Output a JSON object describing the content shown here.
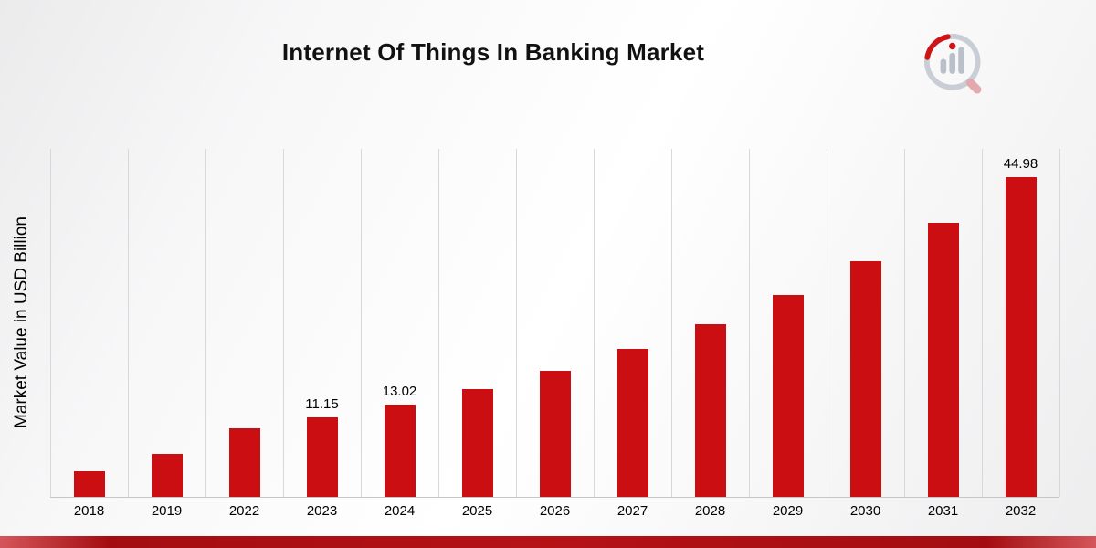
{
  "header": {
    "title": "Internet Of Things In Banking Market"
  },
  "chart_data": {
    "type": "bar",
    "title": "Internet Of Things In Banking Market",
    "xlabel": "",
    "ylabel": "Market Value in USD Billion",
    "categories": [
      "2018",
      "2019",
      "2022",
      "2023",
      "2024",
      "2025",
      "2026",
      "2027",
      "2028",
      "2029",
      "2030",
      "2031",
      "2032"
    ],
    "values": [
      3.6,
      6.0,
      9.7,
      11.15,
      13.02,
      15.2,
      17.8,
      20.9,
      24.3,
      28.4,
      33.2,
      38.6,
      44.98
    ],
    "data_labels": {
      "2023": "11.15",
      "2024": "13.02",
      "2032": "44.98"
    },
    "ylim": [
      0,
      49
    ],
    "grid": "vertical",
    "legend": "none"
  },
  "logo": {
    "name": "magnifier-chart-logo"
  },
  "colors": {
    "bar": "#cb0e12",
    "gridline": "#d8d8d8",
    "footer_dark": "#a30d11",
    "footer_mid": "#b51216",
    "footer_edge": "#d4565a",
    "logo_gray": "#b9c0c9",
    "logo_ring": "#c9ced6",
    "logo_red": "#cf1418",
    "logo_handle": "#e2aaac"
  }
}
